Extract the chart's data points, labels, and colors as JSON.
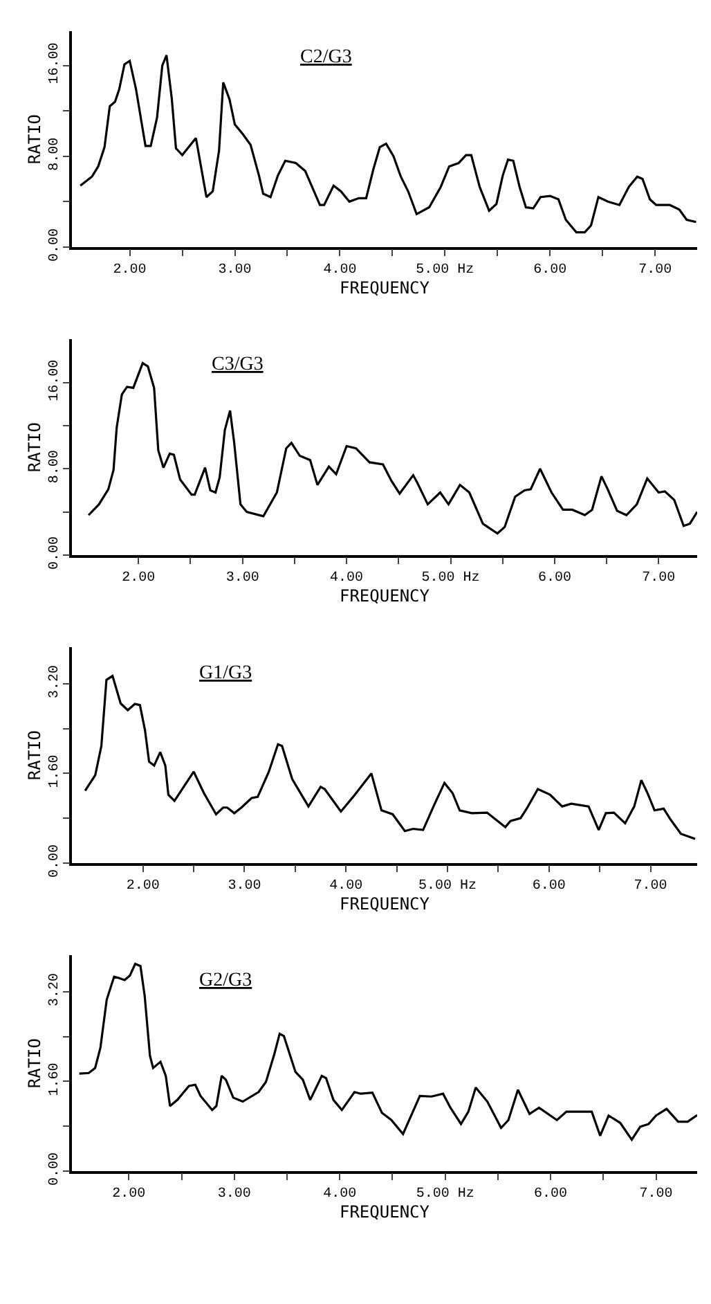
{
  "chart_data": [
    {
      "type": "line",
      "xlabel": "FREQUENCY",
      "ylabel": "RATIO",
      "legend": false,
      "marker": "none",
      "line_style": "solid",
      "xlim": [
        1.45,
        7.4
      ],
      "ylim": [
        0,
        19
      ],
      "xticks": [
        {
          "value": 2,
          "label": "2.00"
        },
        {
          "value": 2.5,
          "label": null
        },
        {
          "value": 3,
          "label": "3.00"
        },
        {
          "value": 3.5,
          "label": null
        },
        {
          "value": 4,
          "label": "4.00"
        },
        {
          "value": 4.5,
          "label": null
        },
        {
          "value": 5,
          "label": "5.00 Hz"
        },
        {
          "value": 5.5,
          "label": null
        },
        {
          "value": 6,
          "label": "6.00"
        },
        {
          "value": 6.5,
          "label": null
        },
        {
          "value": 7,
          "label": "7.00"
        }
      ],
      "yticks": [
        {
          "value": 0,
          "label": "0.00"
        },
        {
          "value": 4,
          "label": null
        },
        {
          "value": 8,
          "label": "8.00"
        },
        {
          "value": 12,
          "label": null
        },
        {
          "value": 16,
          "label": "16.00"
        }
      ],
      "series": [
        {
          "name": "C2/G3",
          "color": "#000000",
          "x": [
            1.53,
            1.64,
            1.7,
            1.76,
            1.81,
            1.86,
            1.9,
            1.95,
            2.0,
            2.06,
            2.15,
            2.2,
            2.26,
            2.31,
            2.35,
            2.4,
            2.44,
            2.5,
            2.63,
            2.73,
            2.79,
            2.85,
            2.89,
            2.95,
            3.0,
            3.08,
            3.15,
            3.23,
            3.27,
            3.34,
            3.41,
            3.48,
            3.58,
            3.67,
            3.81,
            3.85,
            3.94,
            4.01,
            4.09,
            4.18,
            4.25,
            4.32,
            4.38,
            4.44,
            4.51,
            4.58,
            4.65,
            4.73,
            4.85,
            4.96,
            5.04,
            5.13,
            5.2,
            5.25,
            5.33,
            5.42,
            5.49,
            5.55,
            5.6,
            5.65,
            5.71,
            5.77,
            5.84,
            5.91,
            6.0,
            6.08,
            6.15,
            6.25,
            6.33,
            6.39,
            6.46,
            6.55,
            6.66,
            6.75,
            6.83,
            6.88,
            6.95,
            7.01,
            7.14,
            7.23,
            7.3,
            7.39
          ],
          "values": [
            5.4,
            6.2,
            7.1,
            8.8,
            12.4,
            12.8,
            13.9,
            16.1,
            16.4,
            13.9,
            8.9,
            8.9,
            11.4,
            16.0,
            16.9,
            13.1,
            8.7,
            8.1,
            9.6,
            4.4,
            4.9,
            8.5,
            14.5,
            13.0,
            10.8,
            9.9,
            9.0,
            6.3,
            4.7,
            4.4,
            6.3,
            7.6,
            7.4,
            6.7,
            3.7,
            3.7,
            5.4,
            4.9,
            4.0,
            4.3,
            4.3,
            6.9,
            8.8,
            9.1,
            8.0,
            6.2,
            4.9,
            2.9,
            3.5,
            5.3,
            7.1,
            7.4,
            8.1,
            8.1,
            5.3,
            3.2,
            3.8,
            6.3,
            7.7,
            7.6,
            5.3,
            3.5,
            3.4,
            4.4,
            4.5,
            4.2,
            2.4,
            1.3,
            1.3,
            1.9,
            4.4,
            4.0,
            3.7,
            5.3,
            6.2,
            6.0,
            4.2,
            3.7,
            3.7,
            3.3,
            2.4,
            2.2
          ]
        }
      ]
    },
    {
      "type": "line",
      "xlabel": "FREQUENCY",
      "ylabel": "RATIO",
      "legend": false,
      "marker": "none",
      "line_style": "solid",
      "xlim": [
        1.36,
        7.37
      ],
      "ylim": [
        0,
        20
      ],
      "xticks": [
        {
          "value": 2,
          "label": "2.00"
        },
        {
          "value": 2.5,
          "label": null
        },
        {
          "value": 3,
          "label": "3.00"
        },
        {
          "value": 3.5,
          "label": null
        },
        {
          "value": 4,
          "label": "4.00"
        },
        {
          "value": 4.5,
          "label": null
        },
        {
          "value": 5,
          "label": "5.00 Hz"
        },
        {
          "value": 5.5,
          "label": null
        },
        {
          "value": 6,
          "label": "6.00"
        },
        {
          "value": 6.5,
          "label": null
        },
        {
          "value": 7,
          "label": "7.00"
        }
      ],
      "yticks": [
        {
          "value": 0,
          "label": "0.00"
        },
        {
          "value": 4,
          "label": null
        },
        {
          "value": 8,
          "label": "8.00"
        },
        {
          "value": 12,
          "label": null
        },
        {
          "value": 16,
          "label": "16.00"
        }
      ],
      "series": [
        {
          "name": "C3/G3",
          "color": "#000000",
          "x": [
            1.52,
            1.62,
            1.71,
            1.76,
            1.79,
            1.84,
            1.89,
            1.95,
            2.04,
            2.09,
            2.15,
            2.19,
            2.24,
            2.3,
            2.34,
            2.4,
            2.51,
            2.54,
            2.64,
            2.69,
            2.74,
            2.78,
            2.83,
            2.88,
            2.92,
            2.98,
            3.04,
            3.2,
            3.33,
            3.42,
            3.47,
            3.55,
            3.65,
            3.72,
            3.83,
            3.9,
            4.0,
            4.09,
            4.22,
            4.35,
            4.43,
            4.51,
            4.64,
            4.68,
            4.78,
            4.9,
            4.98,
            5.09,
            5.18,
            5.31,
            5.45,
            5.52,
            5.62,
            5.71,
            5.77,
            5.86,
            5.97,
            6.08,
            6.17,
            6.29,
            6.36,
            6.45,
            6.51,
            6.6,
            6.69,
            6.79,
            6.89,
            7.0,
            7.06,
            7.15,
            7.24,
            7.3,
            7.37
          ],
          "values": [
            3.7,
            4.7,
            6.1,
            7.9,
            11.8,
            14.9,
            15.6,
            15.5,
            17.8,
            17.5,
            15.5,
            9.7,
            8.1,
            9.4,
            9.3,
            7.0,
            5.6,
            5.6,
            8.1,
            6.0,
            5.8,
            7.2,
            11.6,
            13.4,
            10.4,
            4.7,
            4.0,
            3.6,
            5.8,
            9.9,
            10.4,
            9.2,
            8.8,
            6.5,
            8.2,
            7.5,
            10.1,
            9.9,
            8.6,
            8.4,
            6.9,
            5.7,
            7.4,
            6.7,
            4.7,
            5.8,
            4.7,
            6.5,
            5.8,
            2.9,
            2.0,
            2.6,
            5.4,
            6.0,
            6.1,
            8.0,
            5.8,
            4.2,
            4.2,
            3.7,
            4.2,
            7.3,
            6.1,
            4.1,
            3.7,
            4.7,
            7.1,
            5.8,
            5.9,
            5.1,
            2.7,
            2.9,
            4.0
          ]
        }
      ]
    },
    {
      "type": "line",
      "xlabel": "FREQUENCY",
      "ylabel": "RATIO",
      "legend": false,
      "marker": "none",
      "line_style": "solid",
      "xlim": [
        1.3,
        7.46
      ],
      "ylim": [
        0,
        3.85
      ],
      "xticks": [
        {
          "value": 2,
          "label": "2.00"
        },
        {
          "value": 2.5,
          "label": null
        },
        {
          "value": 3,
          "label": "3.00"
        },
        {
          "value": 3.5,
          "label": null
        },
        {
          "value": 4,
          "label": "4.00"
        },
        {
          "value": 4.5,
          "label": null
        },
        {
          "value": 5,
          "label": "5.00 Hz"
        },
        {
          "value": 5.5,
          "label": null
        },
        {
          "value": 6,
          "label": "6.00"
        },
        {
          "value": 6.5,
          "label": null
        },
        {
          "value": 7,
          "label": "7.00"
        }
      ],
      "yticks": [
        {
          "value": 0,
          "label": "0.00"
        },
        {
          "value": 0.8,
          "label": null
        },
        {
          "value": 1.6,
          "label": "1.60"
        },
        {
          "value": 2.4,
          "label": null
        },
        {
          "value": 3.2,
          "label": "3.20"
        }
      ],
      "series": [
        {
          "name": "G1/G3",
          "color": "#000000",
          "x": [
            1.43,
            1.53,
            1.59,
            1.64,
            1.7,
            1.78,
            1.85,
            1.92,
            1.97,
            2.02,
            2.06,
            2.11,
            2.17,
            2.22,
            2.25,
            2.31,
            2.5,
            2.6,
            2.72,
            2.79,
            2.83,
            2.9,
            2.97,
            3.07,
            3.13,
            3.24,
            3.33,
            3.37,
            3.47,
            3.63,
            3.75,
            3.79,
            3.95,
            4.07,
            4.16,
            4.25,
            4.35,
            4.46,
            4.58,
            4.66,
            4.76,
            4.87,
            4.97,
            5.05,
            5.12,
            5.24,
            5.39,
            5.46,
            5.57,
            5.62,
            5.72,
            5.78,
            5.89,
            6.01,
            6.13,
            6.22,
            6.39,
            6.49,
            6.56,
            6.64,
            6.75,
            6.84,
            6.91,
            6.97,
            7.04,
            7.13,
            7.2,
            7.3,
            7.44
          ],
          "values": [
            1.29,
            1.57,
            2.09,
            3.27,
            3.34,
            2.85,
            2.73,
            2.84,
            2.82,
            2.37,
            1.81,
            1.74,
            1.98,
            1.74,
            1.22,
            1.11,
            1.63,
            1.25,
            0.87,
            0.99,
            0.99,
            0.89,
            0.99,
            1.16,
            1.18,
            1.63,
            2.12,
            2.09,
            1.5,
            1.01,
            1.36,
            1.32,
            0.92,
            1.18,
            1.39,
            1.6,
            0.94,
            0.87,
            0.57,
            0.61,
            0.59,
            1.04,
            1.43,
            1.25,
            0.94,
            0.89,
            0.9,
            0.8,
            0.64,
            0.75,
            0.8,
            0.97,
            1.32,
            1.22,
            1.01,
            1.06,
            1.01,
            0.59,
            0.89,
            0.9,
            0.71,
            1.01,
            1.48,
            1.25,
            0.94,
            0.97,
            0.77,
            0.52,
            0.43
          ]
        }
      ]
    },
    {
      "type": "line",
      "xlabel": "FREQUENCY",
      "ylabel": "RATIO",
      "legend": false,
      "marker": "none",
      "line_style": "solid",
      "xlim": [
        1.46,
        7.39
      ],
      "ylim": [
        0,
        3.85
      ],
      "xticks": [
        {
          "value": 2,
          "label": "2.00"
        },
        {
          "value": 2.5,
          "label": null
        },
        {
          "value": 3,
          "label": "3.00"
        },
        {
          "value": 3.5,
          "label": null
        },
        {
          "value": 4,
          "label": "4.00"
        },
        {
          "value": 4.5,
          "label": null
        },
        {
          "value": 5,
          "label": "5.00 Hz"
        },
        {
          "value": 5.5,
          "label": null
        },
        {
          "value": 6,
          "label": "6.00"
        },
        {
          "value": 6.5,
          "label": null
        },
        {
          "value": 7,
          "label": "7.00"
        }
      ],
      "yticks": [
        {
          "value": 0,
          "label": "0.00"
        },
        {
          "value": 0.8,
          "label": null
        },
        {
          "value": 1.6,
          "label": "1.60"
        },
        {
          "value": 2.4,
          "label": null
        },
        {
          "value": 3.2,
          "label": "3.20"
        }
      ],
      "series": [
        {
          "name": "G2/G3",
          "color": "#000000",
          "x": [
            1.53,
            1.62,
            1.68,
            1.73,
            1.79,
            1.86,
            1.9,
            1.96,
            2.01,
            2.06,
            2.11,
            2.15,
            2.2,
            2.23,
            2.3,
            2.35,
            2.39,
            2.46,
            2.57,
            2.63,
            2.68,
            2.79,
            2.83,
            2.88,
            2.92,
            2.99,
            3.08,
            3.23,
            3.3,
            3.38,
            3.43,
            3.47,
            3.58,
            3.65,
            3.72,
            3.83,
            3.87,
            3.94,
            4.02,
            4.14,
            4.2,
            4.31,
            4.4,
            4.49,
            4.6,
            4.76,
            4.87,
            4.98,
            5.05,
            5.15,
            5.22,
            5.29,
            5.4,
            5.53,
            5.6,
            5.69,
            5.8,
            5.89,
            6.06,
            6.15,
            6.39,
            6.47,
            6.55,
            6.66,
            6.77,
            6.85,
            6.93,
            7.0,
            7.1,
            7.21,
            7.3,
            7.39
          ],
          "values": [
            1.74,
            1.75,
            1.84,
            2.2,
            3.06,
            3.47,
            3.45,
            3.41,
            3.49,
            3.7,
            3.66,
            3.13,
            2.06,
            1.84,
            1.95,
            1.7,
            1.16,
            1.27,
            1.52,
            1.54,
            1.34,
            1.09,
            1.16,
            1.7,
            1.63,
            1.31,
            1.24,
            1.41,
            1.59,
            2.09,
            2.45,
            2.41,
            1.77,
            1.63,
            1.27,
            1.7,
            1.66,
            1.27,
            1.09,
            1.41,
            1.38,
            1.4,
            1.04,
            0.91,
            0.66,
            1.34,
            1.33,
            1.38,
            1.13,
            0.84,
            1.06,
            1.49,
            1.24,
            0.77,
            0.91,
            1.45,
            1.02,
            1.13,
            0.91,
            1.06,
            1.06,
            0.63,
            0.99,
            0.86,
            0.56,
            0.79,
            0.84,
            0.99,
            1.11,
            0.88,
            0.88,
            1.0
          ]
        }
      ]
    }
  ]
}
